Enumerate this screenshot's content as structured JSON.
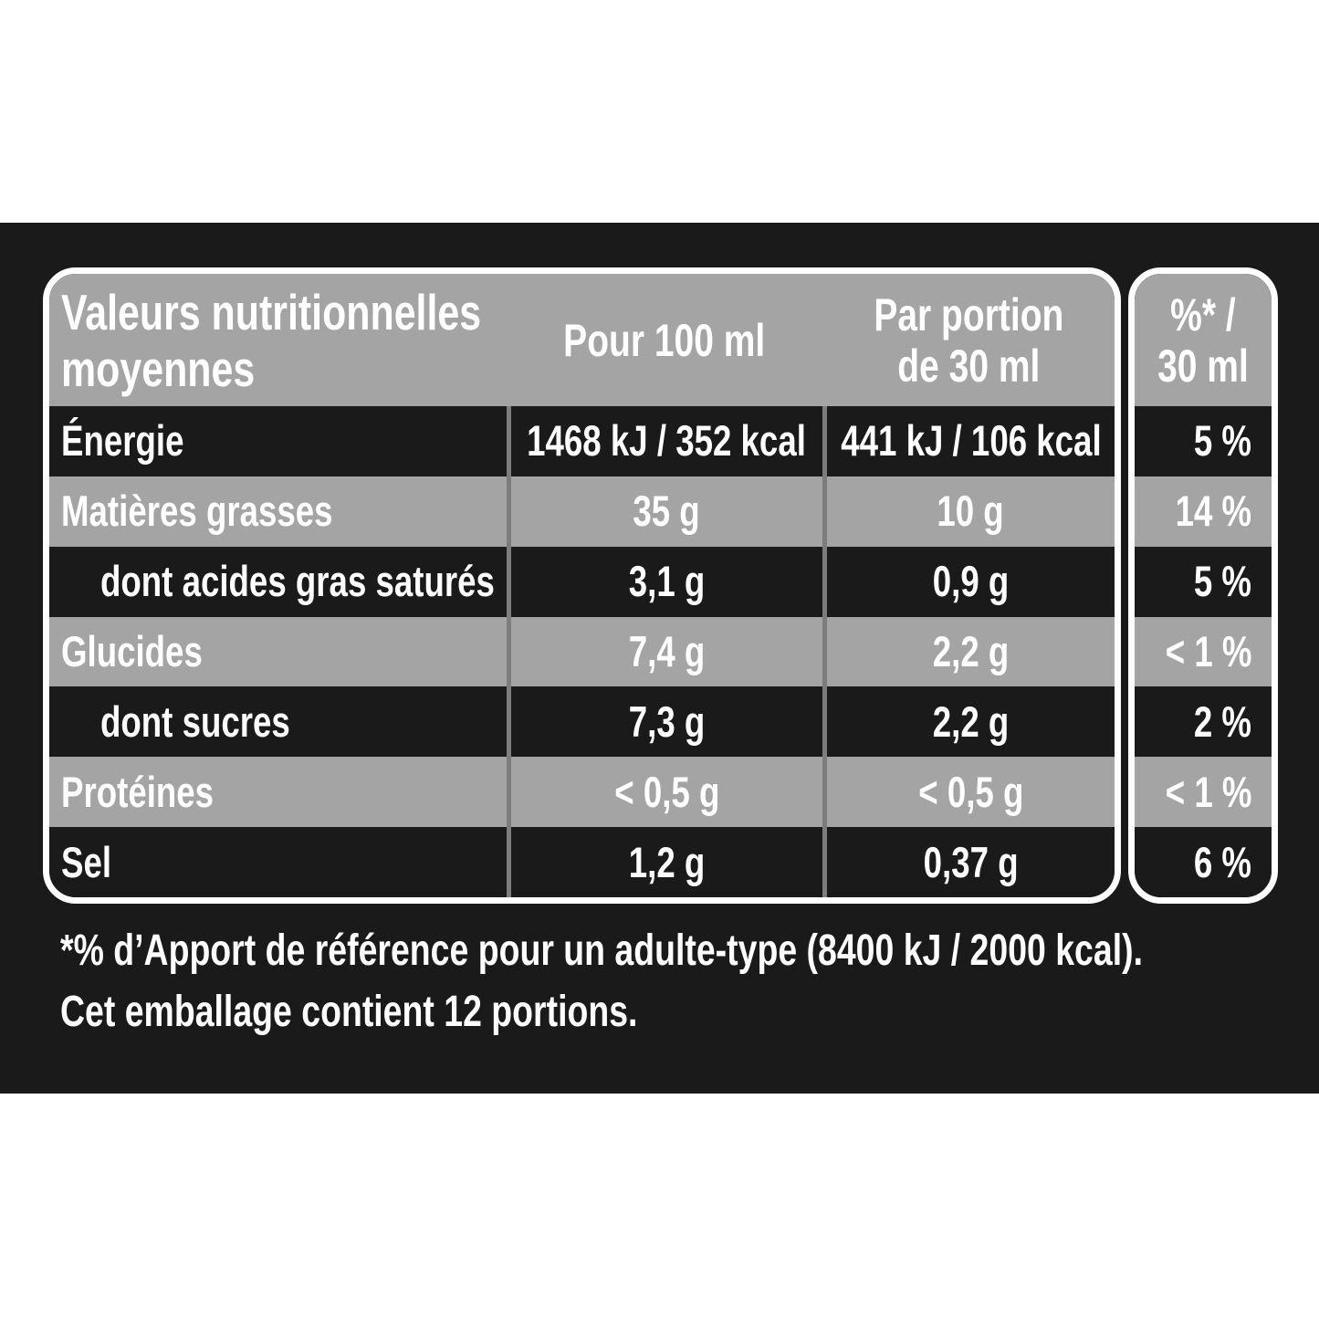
{
  "colors": {
    "panel_background": "#1a1a1a",
    "row_gray": "#a4a4a4",
    "row_black": "#1a1a1a",
    "divider_gray": "#7d7d7d",
    "border_white": "#ffffff",
    "text_white": "#ffffff"
  },
  "table": {
    "header": {
      "label_line1": "Valeurs nutritionnelles",
      "label_line2": "moyennes",
      "per_100": "Pour 100 ml",
      "portion_line1": "Par portion",
      "portion_line2": "de 30 ml",
      "pct_line1": "%* /",
      "pct_line2": "30 ml"
    },
    "rows": [
      {
        "label": "Énergie",
        "per_100": "1468 kJ / 352 kcal",
        "portion": "441 kJ / 106 kcal",
        "pct": "5 %"
      },
      {
        "label": "Matières grasses",
        "per_100": "35 g",
        "portion": "10 g",
        "pct": "14 %"
      },
      {
        "label": "dont acides gras saturés",
        "per_100": "3,1 g",
        "portion": "0,9 g",
        "pct": "5 %"
      },
      {
        "label": "Glucides",
        "per_100": "7,4 g",
        "portion": "2,2 g",
        "pct": "< 1 %"
      },
      {
        "label": "dont sucres",
        "per_100": "7,3 g",
        "portion": "2,2 g",
        "pct": "2 %"
      },
      {
        "label": "Protéines",
        "per_100": "< 0,5 g",
        "portion": "< 0,5 g",
        "pct": "< 1 %"
      },
      {
        "label": "Sel",
        "per_100": "1,2 g",
        "portion": "0,37 g",
        "pct": "6 %"
      }
    ]
  },
  "footnote": {
    "line1": "*% d’Apport de référence pour un adulte-type (8400 kJ / 2000 kcal).",
    "line2": "Cet emballage contient 12 portions."
  }
}
